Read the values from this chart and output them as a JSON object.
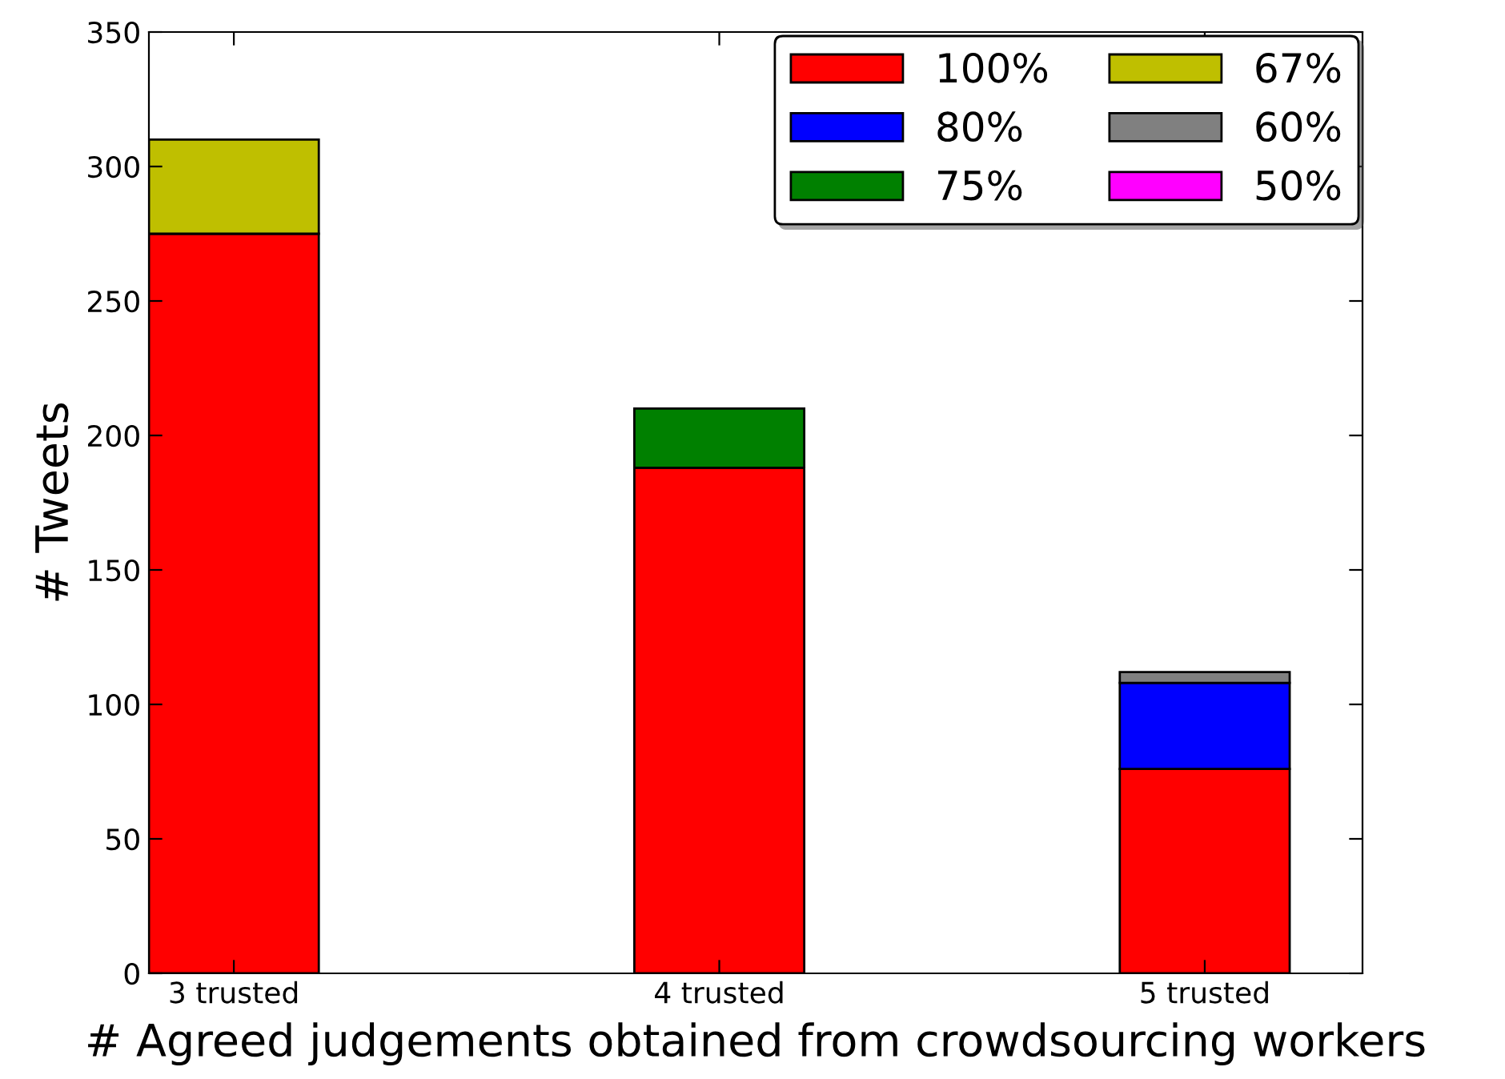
{
  "chart_data": {
    "type": "bar",
    "stacked": true,
    "xlabel": "# Agreed judgements obtained from crowdsourcing workers",
    "ylabel": "# Tweets",
    "categories": [
      "3 trusted",
      "4 trusted",
      "5 trusted"
    ],
    "series": [
      {
        "name": "100%",
        "color": "#ff0000",
        "values": [
          275,
          188,
          76
        ]
      },
      {
        "name": "80%",
        "color": "#0000ff",
        "values": [
          null,
          null,
          32
        ]
      },
      {
        "name": "75%",
        "color": "#008000",
        "values": [
          null,
          22,
          null
        ]
      },
      {
        "name": "67%",
        "color": "#bfbf00",
        "values": [
          35,
          null,
          null
        ]
      },
      {
        "name": "60%",
        "color": "#808080",
        "values": [
          null,
          null,
          4
        ]
      },
      {
        "name": "50%",
        "color": "#ff00ff",
        "values": [
          null,
          null,
          null
        ]
      }
    ],
    "ylim": [
      0,
      350
    ],
    "yticks": [
      0,
      50,
      100,
      150,
      200,
      250,
      300,
      350
    ],
    "grid": false,
    "legend": "top right"
  }
}
